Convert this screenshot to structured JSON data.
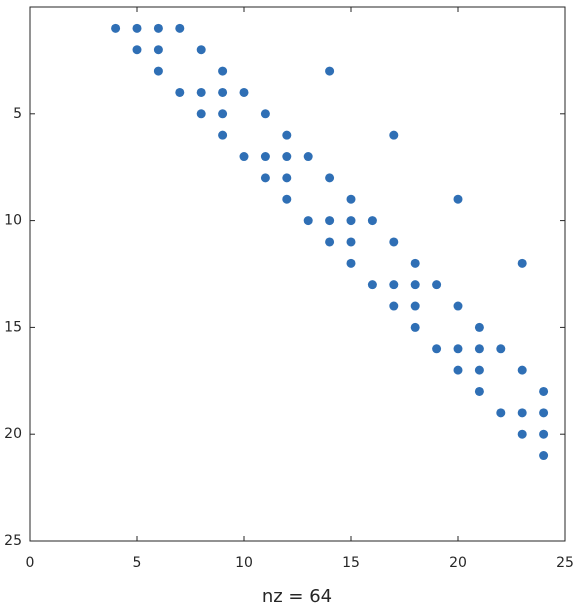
{
  "chart_data": {
    "type": "scatter",
    "xlabel": "nz = 64",
    "x": [
      4,
      5,
      6,
      7,
      5,
      6,
      8,
      6,
      9,
      14,
      7,
      8,
      9,
      10,
      8,
      9,
      11,
      9,
      12,
      17,
      10,
      11,
      12,
      13,
      11,
      12,
      14,
      12,
      15,
      20,
      13,
      14,
      15,
      16,
      14,
      15,
      17,
      15,
      18,
      23,
      16,
      17,
      18,
      19,
      17,
      18,
      20,
      18,
      21,
      19,
      20,
      21,
      22,
      20,
      21,
      23,
      21,
      24,
      22,
      23,
      24,
      23,
      24,
      24
    ],
    "y": [
      1,
      1,
      1,
      1,
      2,
      2,
      2,
      3,
      3,
      3,
      4,
      4,
      4,
      4,
      5,
      5,
      5,
      6,
      6,
      6,
      7,
      7,
      7,
      7,
      8,
      8,
      8,
      9,
      9,
      9,
      10,
      10,
      10,
      10,
      11,
      11,
      11,
      12,
      12,
      12,
      13,
      13,
      13,
      13,
      14,
      14,
      14,
      15,
      15,
      16,
      16,
      16,
      16,
      17,
      17,
      17,
      18,
      18,
      19,
      19,
      19,
      20,
      20,
      21
    ],
    "color": "#2f6fb5",
    "xlim": [
      0,
      25
    ],
    "xticks": [
      0,
      5,
      10,
      15,
      20,
      25
    ],
    "ylim": [
      0,
      25
    ],
    "yticks": [
      5,
      10,
      15,
      20,
      25
    ],
    "y_inverted": true
  }
}
